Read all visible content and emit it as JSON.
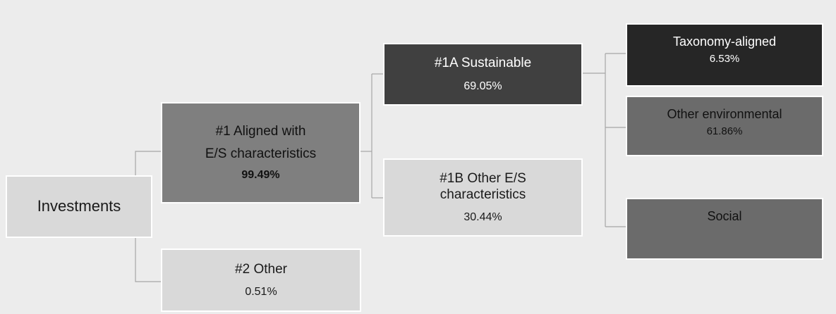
{
  "nodes": {
    "investments": {
      "label": "Investments"
    },
    "aligned": {
      "line1": "#1 Aligned with",
      "line2": "E/S characteristics",
      "percent": "99.49%"
    },
    "other": {
      "label": "#2 Other",
      "percent": "0.51%"
    },
    "sustainable": {
      "label": "#1A Sustainable",
      "percent": "69.05%"
    },
    "other_es": {
      "line1": "#1B Other E/S",
      "line2": "characteristics",
      "percent": "30.44%"
    },
    "taxonomy": {
      "label": "Taxonomy-aligned",
      "percent": "6.53%"
    },
    "other_env": {
      "label": "Other environmental",
      "percent": "61.86%"
    },
    "social": {
      "label": "Social"
    }
  },
  "colors": {
    "background": "#ececec",
    "light_box": "#d9d9d9",
    "mid_box": "#7f7f7f",
    "dark_box": "#404040",
    "darker_box": "#6b6b6b",
    "black_box": "#262626",
    "connector": "#a6a6a6"
  }
}
